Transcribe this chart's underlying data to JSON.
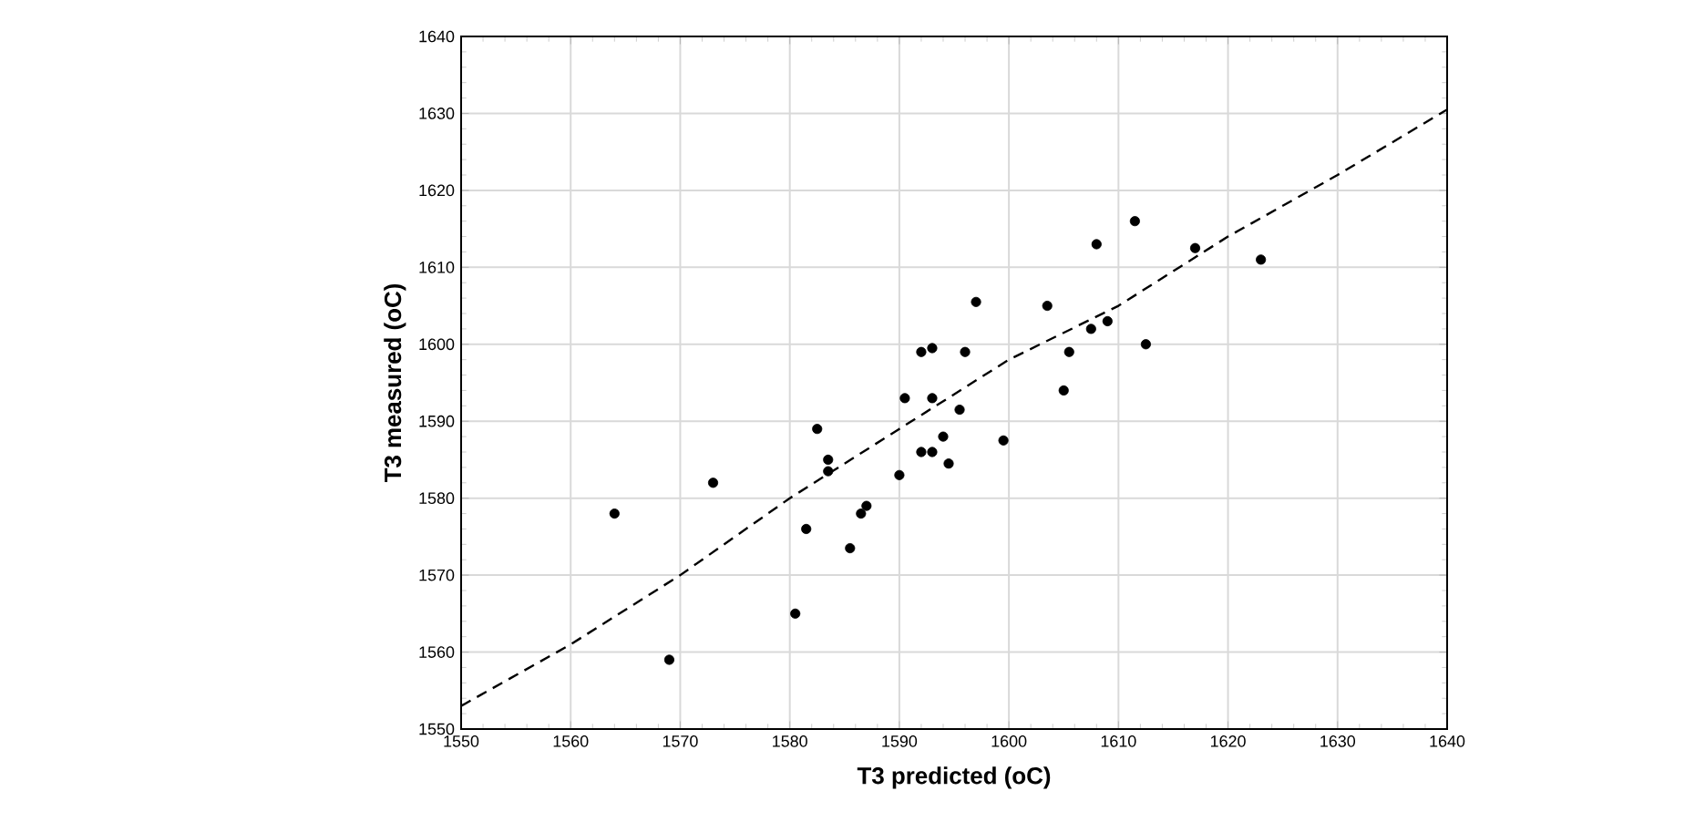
{
  "chart_data": {
    "type": "scatter",
    "xlabel": "T3 predicted (oC)",
    "ylabel": "T3 measured (oC)",
    "xlim": [
      1550,
      1640
    ],
    "ylim": [
      1550,
      1640
    ],
    "xticks": [
      1550,
      1560,
      1570,
      1580,
      1590,
      1600,
      1610,
      1620,
      1630,
      1640
    ],
    "yticks": [
      1550,
      1560,
      1570,
      1580,
      1590,
      1600,
      1610,
      1620,
      1630,
      1640
    ],
    "grid": true,
    "marker": "circle",
    "series": [
      {
        "color": "#000000",
        "x": [
          1564,
          1569,
          1573,
          1580.5,
          1581.5,
          1582.5,
          1583.5,
          1583.5,
          1585.5,
          1586.5,
          1587,
          1590,
          1590.5,
          1592,
          1592,
          1593,
          1593,
          1593,
          1594,
          1594.5,
          1595.5,
          1596,
          1597,
          1599.5,
          1603.5,
          1605,
          1605.5,
          1607.5,
          1608,
          1609,
          1611.5,
          1612.5,
          1617,
          1623
        ],
        "values": [
          1578,
          1559,
          1582,
          1565,
          1576,
          1589,
          1585,
          1583.5,
          1573.5,
          1578,
          1579,
          1583,
          1593,
          1586,
          1599,
          1599.5,
          1593,
          1586,
          1588,
          1584.5,
          1591.5,
          1599,
          1605.5,
          1587.5,
          1605,
          1594,
          1599,
          1602,
          1613,
          1603,
          1616,
          1600,
          1612.5,
          1611
        ]
      },
      {
        "type": "line",
        "color": "#000000",
        "marker": "none",
        "line_style": "dashed",
        "x": [
          1550,
          1560,
          1570,
          1580,
          1590,
          1600,
          1610,
          1620,
          1630,
          1640
        ],
        "values": [
          1553,
          1561,
          1570,
          1580,
          1589,
          1598,
          1605,
          1614,
          1622,
          1630.5
        ]
      }
    ]
  }
}
